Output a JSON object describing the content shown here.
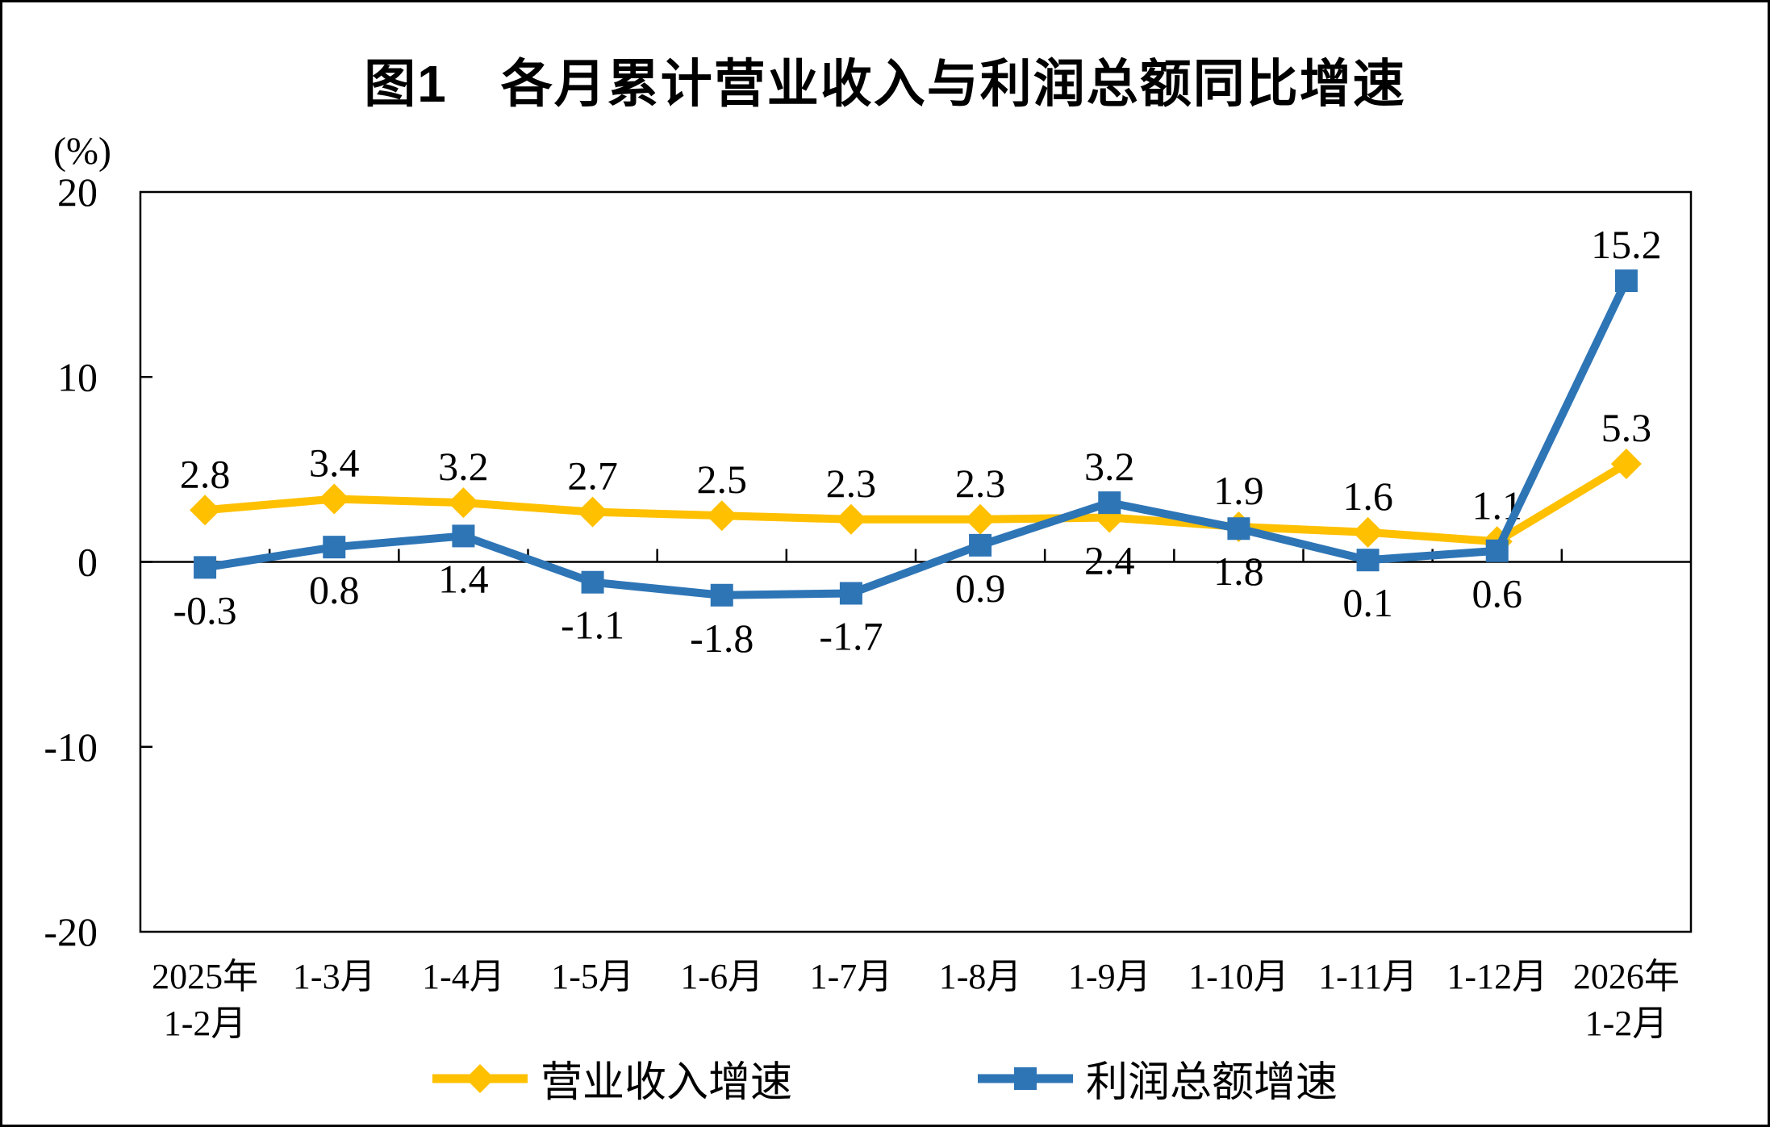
{
  "title": "图1　各月累计营业收入与利润总额同比增速",
  "y_axis_unit": "(%)",
  "colors": {
    "axis": "#000000",
    "revenue": "#FFC000",
    "profit": "#2E75B6"
  },
  "chart_data": {
    "type": "line",
    "categories": [
      "2025年\n1-2月",
      "1-3月",
      "1-4月",
      "1-5月",
      "1-6月",
      "1-7月",
      "1-8月",
      "1-9月",
      "1-10月",
      "1-11月",
      "1-12月",
      "2026年\n1-2月"
    ],
    "series": [
      {
        "name": "营业收入增速",
        "slug": "operating-revenue-growth",
        "color": "#FFC000",
        "marker": "diamond",
        "values": [
          2.8,
          3.4,
          3.2,
          2.7,
          2.5,
          2.3,
          2.3,
          2.4,
          1.9,
          1.6,
          1.1,
          5.3
        ],
        "label_sides": [
          "above",
          "above",
          "above",
          "above",
          "above",
          "above",
          "above",
          "below",
          "above",
          "above",
          "above",
          "above"
        ]
      },
      {
        "name": "利润总额增速",
        "slug": "total-profit-growth",
        "color": "#2E75B6",
        "marker": "square",
        "values": [
          -0.3,
          0.8,
          1.4,
          -1.1,
          -1.8,
          -1.7,
          0.9,
          3.2,
          1.8,
          0.1,
          0.6,
          15.2
        ],
        "label_sides": [
          "below",
          "below",
          "below",
          "below",
          "below",
          "below",
          "below",
          "above",
          "below",
          "below",
          "below",
          "above"
        ]
      }
    ],
    "ylim": [
      -20,
      20
    ],
    "yticks": [
      20,
      10,
      0,
      -10,
      -20
    ],
    "grid": "off",
    "legend_position": "bottom"
  }
}
